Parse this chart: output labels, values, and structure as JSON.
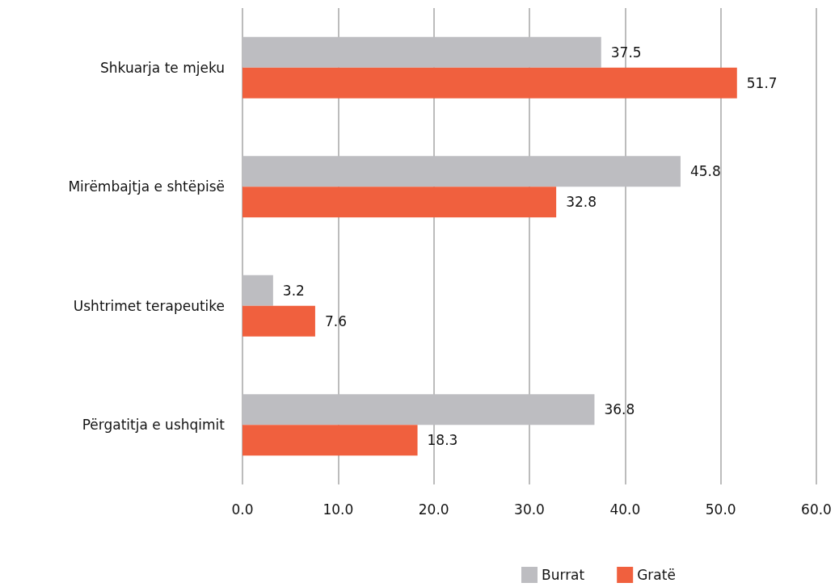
{
  "chart_data": {
    "type": "bar",
    "orientation": "horizontal",
    "categories": [
      "Shkuarja te mjeku",
      "Mirëmbajtja e shtëpisë",
      "Ushtrimet terapeutike",
      "Përgatitja e ushqimit"
    ],
    "series": [
      {
        "name": "Burrat",
        "color": "#bdbdc1",
        "values": [
          37.5,
          45.8,
          3.2,
          36.8
        ]
      },
      {
        "name": "Gratë",
        "color": "#f0603e",
        "values": [
          51.7,
          32.8,
          7.6,
          18.3
        ]
      }
    ],
    "xlim": [
      0,
      60
    ],
    "xticks": [
      {
        "value": 0,
        "label": "0.0"
      },
      {
        "value": 10,
        "label": "10.0"
      },
      {
        "value": 20,
        "label": "20.0"
      },
      {
        "value": 30,
        "label": "30.0"
      },
      {
        "value": 40,
        "label": "40.0"
      },
      {
        "value": 50,
        "label": "50.0"
      },
      {
        "value": 60,
        "label": "60.0"
      }
    ],
    "grid": "x",
    "legend": "bottom",
    "data_labels": true
  }
}
